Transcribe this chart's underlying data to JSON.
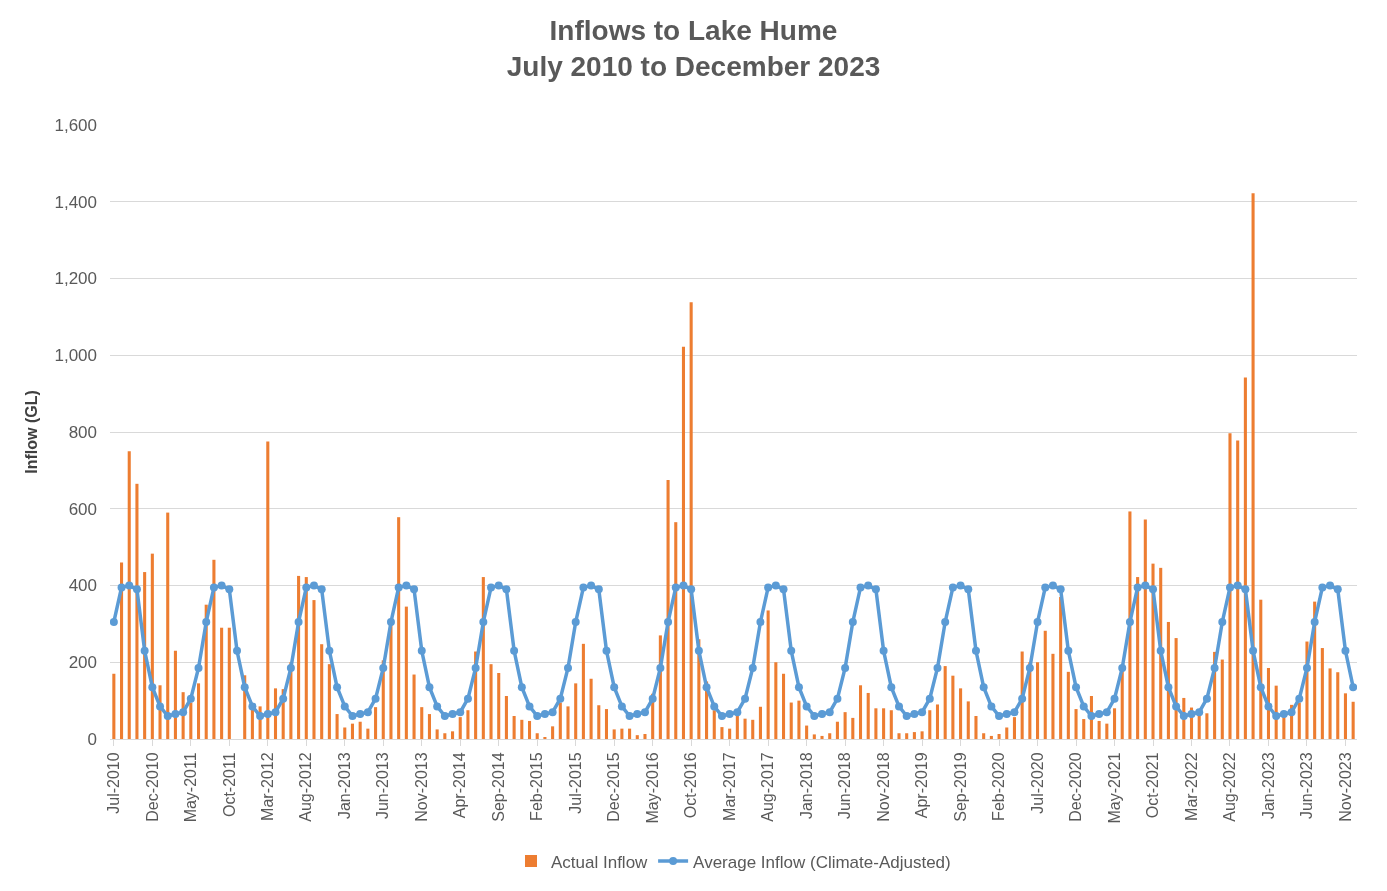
{
  "chart_data": {
    "type": "bar",
    "title": "Inflows to Lake Hume\nJuly 2010 to December 2023",
    "ylabel": "Inflow (GL)",
    "categories": [
      "Jul-2010",
      null,
      null,
      null,
      null,
      "Dec-2010",
      null,
      null,
      null,
      null,
      "May-2011",
      null,
      null,
      null,
      null,
      "Oct-2011",
      null,
      null,
      null,
      null,
      "Mar-2012",
      null,
      null,
      null,
      null,
      "Aug-2012",
      null,
      null,
      null,
      null,
      "Jan-2013",
      null,
      null,
      null,
      null,
      "Jun-2013",
      null,
      null,
      null,
      null,
      "Nov-2013",
      null,
      null,
      null,
      null,
      "Apr-2014",
      null,
      null,
      null,
      null,
      "Sep-2014",
      null,
      null,
      null,
      null,
      "Feb-2015",
      null,
      null,
      null,
      null,
      "Jul-2015",
      null,
      null,
      null,
      null,
      "Dec-2015",
      null,
      null,
      null,
      null,
      "May-2016",
      null,
      null,
      null,
      null,
      "Oct-2016",
      null,
      null,
      null,
      null,
      "Mar-2017",
      null,
      null,
      null,
      null,
      "Aug-2017",
      null,
      null,
      null,
      null,
      "Jan-2018",
      null,
      null,
      null,
      null,
      "Jun-2018",
      null,
      null,
      null,
      null,
      "Nov-2018",
      null,
      null,
      null,
      null,
      "Apr-2019",
      null,
      null,
      null,
      null,
      "Sep-2019",
      null,
      null,
      null,
      null,
      "Feb-2020",
      null,
      null,
      null,
      null,
      "Jul-2020",
      null,
      null,
      null,
      null,
      "Dec-2020",
      null,
      null,
      null,
      null,
      "May-2021",
      null,
      null,
      null,
      null,
      "Oct-2021",
      null,
      null,
      null,
      null,
      "Mar-2022",
      null,
      null,
      null,
      null,
      "Aug-2022",
      null,
      null,
      null,
      null,
      "Jan-2023",
      null,
      null,
      null,
      null,
      "Jun-2023",
      null,
      null,
      null,
      null,
      "Nov-2023",
      null
    ],
    "series": [
      {
        "name": "Actual Inflow",
        "color": "#ed7d31",
        "values": [
          170,
          460,
          750,
          665,
          435,
          483,
          140,
          590,
          230,
          122,
          95,
          145,
          350,
          467,
          290,
          290,
          null,
          166,
          80,
          85,
          775,
          132,
          130,
          200,
          425,
          422,
          362,
          247,
          195,
          65,
          30,
          40,
          45,
          27,
          83,
          205,
          300,
          578,
          345,
          168,
          83,
          65,
          25,
          15,
          20,
          57,
          75,
          228,
          422,
          195,
          172,
          112,
          60,
          50,
          47,
          15,
          5,
          33,
          95,
          85,
          145,
          248,
          157,
          88,
          78,
          25,
          27,
          27,
          10,
          13,
          118,
          270,
          675,
          565,
          1022,
          1138,
          260,
          150,
          75,
          31,
          27,
          62,
          53,
          50,
          84,
          335,
          200,
          170,
          95,
          100,
          35,
          12,
          8,
          15,
          45,
          70,
          55,
          140,
          120,
          80,
          80,
          75,
          15,
          15,
          18,
          20,
          75,
          90,
          190,
          165,
          132,
          98,
          60,
          15,
          8,
          13,
          30,
          57,
          228,
          200,
          200,
          282,
          222,
          370,
          175,
          78,
          52,
          112,
          47,
          40,
          80,
          180,
          593,
          422,
          572,
          457,
          446,
          305,
          263,
          107,
          82,
          65,
          67,
          227,
          207,
          797,
          778,
          942,
          1422,
          363,
          185,
          139,
          60,
          89,
          95,
          254,
          358,
          237,
          184,
          174,
          119,
          97
        ]
      },
      {
        "name": "Average Inflow (Climate-Adjusted)",
        "type": "line",
        "color": "#5b9bd5",
        "values": [
          305,
          395,
          400,
          390,
          230,
          135,
          85,
          60,
          65,
          70,
          105,
          185,
          305,
          395,
          400,
          390,
          230,
          135,
          85,
          60,
          65,
          70,
          105,
          185,
          305,
          395,
          400,
          390,
          230,
          135,
          85,
          60,
          65,
          70,
          105,
          185,
          305,
          395,
          400,
          390,
          230,
          135,
          85,
          60,
          65,
          70,
          105,
          185,
          305,
          395,
          400,
          390,
          230,
          135,
          85,
          60,
          65,
          70,
          105,
          185,
          305,
          395,
          400,
          390,
          230,
          135,
          85,
          60,
          65,
          70,
          105,
          185,
          305,
          395,
          400,
          390,
          230,
          135,
          85,
          60,
          65,
          70,
          105,
          185,
          305,
          395,
          400,
          390,
          230,
          135,
          85,
          60,
          65,
          70,
          105,
          185,
          305,
          395,
          400,
          390,
          230,
          135,
          85,
          60,
          65,
          70,
          105,
          185,
          305,
          395,
          400,
          390,
          230,
          135,
          85,
          60,
          65,
          70,
          105,
          185,
          305,
          395,
          400,
          390,
          230,
          135,
          85,
          60,
          65,
          70,
          105,
          185,
          305,
          395,
          400,
          390,
          230,
          135,
          85,
          60,
          65,
          70,
          105,
          185,
          305,
          395,
          400,
          390,
          230,
          135,
          85,
          60,
          65,
          70,
          105,
          185,
          305,
          395,
          400,
          390,
          230,
          135
        ]
      }
    ],
    "ylim": [
      0,
      1600
    ],
    "yticks": [
      0,
      200,
      400,
      600,
      800,
      {
        "value": 1000,
        "label": "1,000"
      },
      {
        "value": 1200,
        "label": "1,200"
      },
      {
        "value": 1400,
        "label": "1,400"
      },
      {
        "value": 1600,
        "label": "1,600"
      }
    ],
    "grid": "y",
    "legend": "bottom",
    "marker": "circle",
    "line_style": "solid"
  }
}
